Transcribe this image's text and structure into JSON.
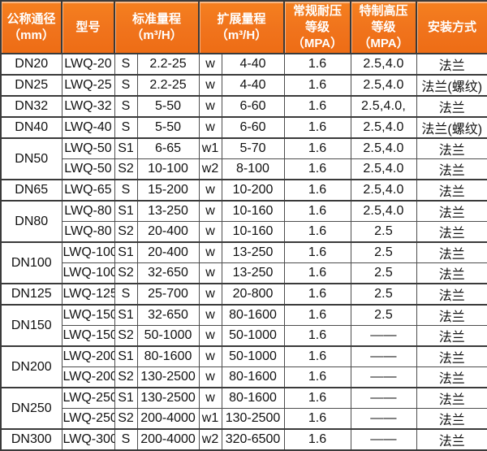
{
  "colors": {
    "header_orange": "#F0731C",
    "header_text": "#FFFFFF",
    "border_dark": "#3A3A3A",
    "border_light": "#8D8D8D",
    "body_text": "#111111",
    "body_bg": "#FFFFFF"
  },
  "table": {
    "headers": {
      "dn": "公称通径\n（mm）",
      "model": "型号",
      "standard_range": "标准量程\n（m³/H）",
      "extended_range": "扩展量程\n（m³/H）",
      "normal_pressure": "常规耐压\n等级（MPA）",
      "special_pressure": "特制高压\n等级（MPA）",
      "install": "安装方式"
    },
    "rows": [
      {
        "dn": "DN20",
        "dn_rowspan": 1,
        "model": "LWQ-20",
        "s": "S",
        "std": "2.2-25",
        "w": "w",
        "ext": "4-40",
        "p1": "1.6",
        "p2": "2.5,4.0",
        "install": "法兰",
        "group_start": true
      },
      {
        "dn": "DN25",
        "dn_rowspan": 1,
        "model": "LWQ-25",
        "s": "S",
        "std": "2.2-25",
        "w": "w",
        "ext": "4-40",
        "p1": "1.6",
        "p2": "2.5,4.0",
        "install": "法兰(螺纹)",
        "group_start": true
      },
      {
        "dn": "DN32",
        "dn_rowspan": 1,
        "model": "LWQ-32",
        "s": "S",
        "std": "5-50",
        "w": "w",
        "ext": "6-60",
        "p1": "1.6",
        "p2": "2.5,4.0,",
        "install": "法兰",
        "group_start": true
      },
      {
        "dn": "DN40",
        "dn_rowspan": 1,
        "model": "LWQ-40",
        "s": "S",
        "std": "5-50",
        "w": "w",
        "ext": "6-60",
        "p1": "1.6",
        "p2": "2.5,4.0",
        "install": "法兰(螺纹)",
        "group_start": true
      },
      {
        "dn": "DN50",
        "dn_rowspan": 2,
        "model": "LWQ-50",
        "s": "S1",
        "std": "6-65",
        "w": "w1",
        "ext": "5-70",
        "p1": "1.6",
        "p2": "2.5,4.0",
        "install": "法兰",
        "group_start": true
      },
      {
        "dn": null,
        "model": "LWQ-50",
        "s": "S2",
        "std": "10-100",
        "w": "w2",
        "ext": "8-100",
        "p1": "1.6",
        "p2": "2.5,4.0",
        "install": "法兰",
        "group_start": false
      },
      {
        "dn": "DN65",
        "dn_rowspan": 1,
        "model": "LWQ-65",
        "s": "S",
        "std": "15-200",
        "w": "w",
        "ext": "10-200",
        "p1": "1.6",
        "p2": "2.5,4.0",
        "install": "法兰",
        "group_start": true
      },
      {
        "dn": "DN80",
        "dn_rowspan": 2,
        "model": "LWQ-80",
        "s": "S1",
        "std": "13-250",
        "w": "w",
        "ext": "10-160",
        "p1": "1.6",
        "p2": "2.5,4.0",
        "install": "法兰",
        "group_start": true
      },
      {
        "dn": null,
        "model": "LWQ-80",
        "s": "S2",
        "std": "20-400",
        "w": "w",
        "ext": "10-160",
        "p1": "1.6",
        "p2": "2.5",
        "install": "法兰",
        "group_start": false
      },
      {
        "dn": "DN100",
        "dn_rowspan": 2,
        "model": "LWQ-100",
        "s": "S1",
        "std": "20-400",
        "w": "w",
        "ext": "13-250",
        "p1": "1.6",
        "p2": "2.5",
        "install": "法兰",
        "group_start": true
      },
      {
        "dn": null,
        "model": "LWQ-100",
        "s": "S2",
        "std": "32-650",
        "w": "w",
        "ext": "13-250",
        "p1": "1.6",
        "p2": "2.5",
        "install": "法兰",
        "group_start": false
      },
      {
        "dn": "DN125",
        "dn_rowspan": 1,
        "model": "LWQ-125",
        "s": "S",
        "std": "25-700",
        "w": "w",
        "ext": "20-800",
        "p1": "1.6",
        "p2": "2.5",
        "install": "法兰",
        "group_start": true
      },
      {
        "dn": "DN150",
        "dn_rowspan": 2,
        "model": "LWQ-150",
        "s": "S1",
        "std": "32-650",
        "w": "w",
        "ext": "80-1600",
        "p1": "1.6",
        "p2": "2.5",
        "install": "法兰",
        "group_start": true
      },
      {
        "dn": null,
        "model": "LWQ-150",
        "s": "S2",
        "std": "50-1000",
        "w": "w",
        "ext": "50-1000",
        "p1": "1.6",
        "p2": "——",
        "install": "法兰",
        "group_start": false
      },
      {
        "dn": "DN200",
        "dn_rowspan": 2,
        "model": "LWQ-200",
        "s": "S1",
        "std": "80-1600",
        "w": "w",
        "ext": "50-1000",
        "p1": "1.6",
        "p2": "——",
        "install": "法兰",
        "group_start": true
      },
      {
        "dn": null,
        "model": "LWQ-200",
        "s": "S2",
        "std": "130-2500",
        "w": "w",
        "ext": "80-1600",
        "p1": "1.6",
        "p2": "——",
        "install": "法兰",
        "group_start": false
      },
      {
        "dn": "DN250",
        "dn_rowspan": 2,
        "model": "LWQ-250",
        "s": "S1",
        "std": "130-2500",
        "w": "w",
        "ext": "80-1600",
        "p1": "1.6",
        "p2": "——",
        "install": "法兰",
        "group_start": true
      },
      {
        "dn": null,
        "model": "LWQ-250",
        "s": "S2",
        "std": "200-4000",
        "w": "w1",
        "ext": "130-2500",
        "p1": "1.6",
        "p2": "——",
        "install": "法兰",
        "group_start": false
      },
      {
        "dn": "DN300",
        "dn_rowspan": 1,
        "model": "LWQ-300",
        "s": "S",
        "std": "200-4000",
        "w": "w2",
        "ext": "320-6500",
        "p1": "1.6",
        "p2": "——",
        "install": "法兰",
        "group_start": true
      }
    ]
  }
}
